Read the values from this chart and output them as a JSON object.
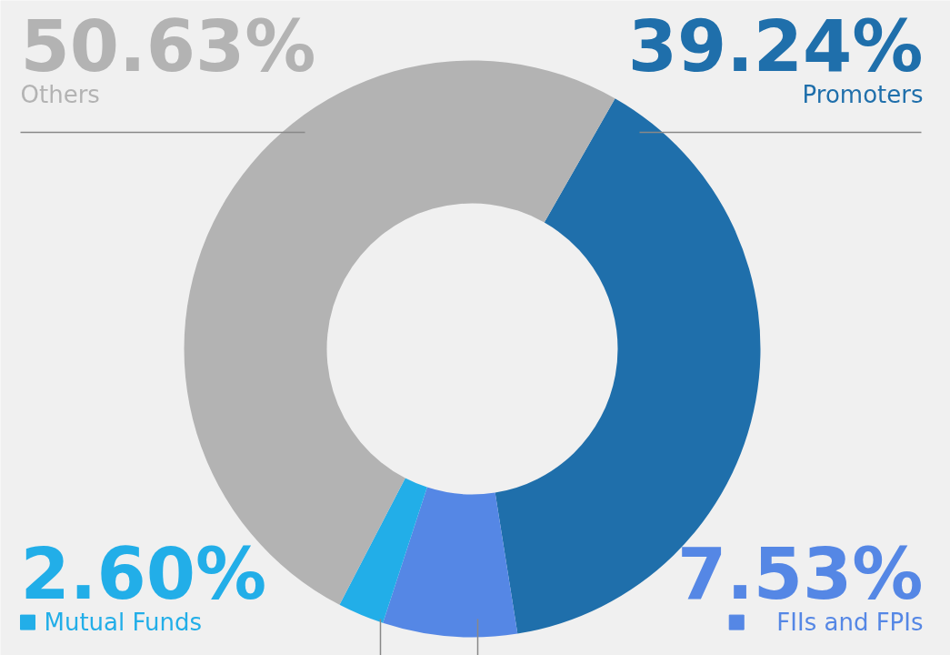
{
  "chart_data": {
    "type": "donut",
    "categories": [
      "Promoters",
      "FIIs and FPIs",
      "Mutual Funds",
      "Others"
    ],
    "values": [
      39.24,
      7.53,
      2.6,
      50.63
    ],
    "colors": [
      "#1f6fab",
      "#5587e5",
      "#22aee8",
      "#b3b3b3"
    ],
    "value_labels": [
      "39.24%",
      "7.53%",
      "2.60%",
      "50.63%"
    ],
    "legend": "bottom"
  }
}
